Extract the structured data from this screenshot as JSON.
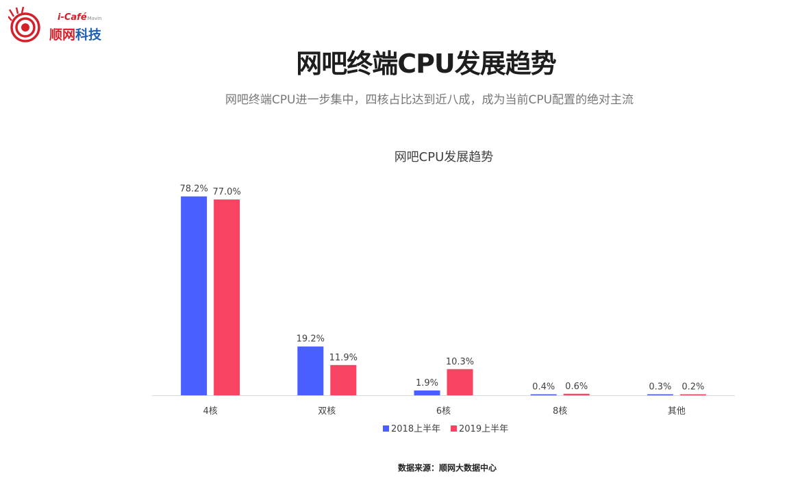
{
  "logo": {
    "top_text": "i-Café",
    "top_small": "Mavin",
    "name_red": "顺网",
    "name_blue": "科技"
  },
  "header": {
    "title": "网吧终端CPU发展趋势",
    "subtitle": "网吧终端CPU进一步集中，四核占比达到近八成，成为当前CPU配置的绝对主流"
  },
  "footer": {
    "source": "数据来源：顺网大数据中心"
  },
  "colors": {
    "series_2018": "#4a5fff",
    "series_2019": "#f84462",
    "axis": "#d9d9d9",
    "label_text": "#404040"
  },
  "chart_data": {
    "type": "bar",
    "title": "网吧CPU发展趋势",
    "categories": [
      "4核",
      "双核",
      "6核",
      "8核",
      "其他"
    ],
    "series": [
      {
        "name": "2018上半年",
        "values": [
          78.2,
          19.2,
          1.9,
          0.4,
          0.3
        ],
        "labels": [
          "78.2%",
          "19.2%",
          "1.9%",
          "0.4%",
          "0.3%"
        ]
      },
      {
        "name": "2019上半年",
        "values": [
          77.0,
          11.9,
          10.3,
          0.6,
          0.2
        ],
        "labels": [
          "77.0%",
          "11.9%",
          "10.3%",
          "0.6%",
          "0.2%"
        ]
      }
    ],
    "ylim": [
      0,
      80
    ],
    "grid": false,
    "legend_position": "bottom"
  }
}
